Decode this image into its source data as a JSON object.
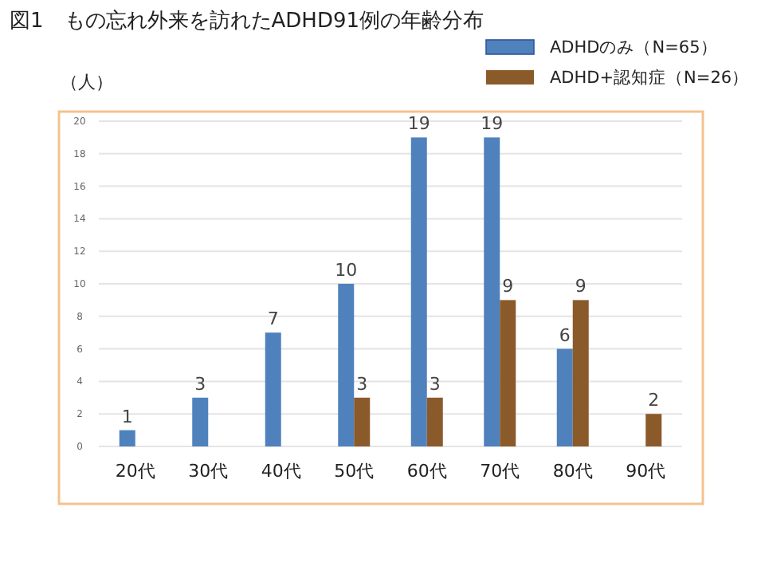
{
  "chart_data": {
    "type": "bar",
    "title": "図1　もの忘れ外来を訪れたADHD91例の年齢分布",
    "ylabel": "（人）",
    "categories": [
      "20代",
      "30代",
      "40代",
      "50代",
      "60代",
      "70代",
      "80代",
      "90代"
    ],
    "series": [
      {
        "name": "ADHDのみ（N=65）",
        "color": "#4f81bd",
        "values": [
          1,
          3,
          7,
          10,
          19,
          19,
          6,
          null
        ]
      },
      {
        "name": "ADHD+認知症（N=26）",
        "color": "#8b5a2b",
        "values": [
          null,
          null,
          null,
          3,
          3,
          9,
          9,
          2
        ]
      }
    ],
    "ylim": [
      0,
      20
    ],
    "yticks": [
      0,
      2,
      4,
      6,
      8,
      10,
      12,
      14,
      16,
      18,
      20
    ],
    "grid": "y",
    "legend": "top right",
    "data_labels": true
  }
}
